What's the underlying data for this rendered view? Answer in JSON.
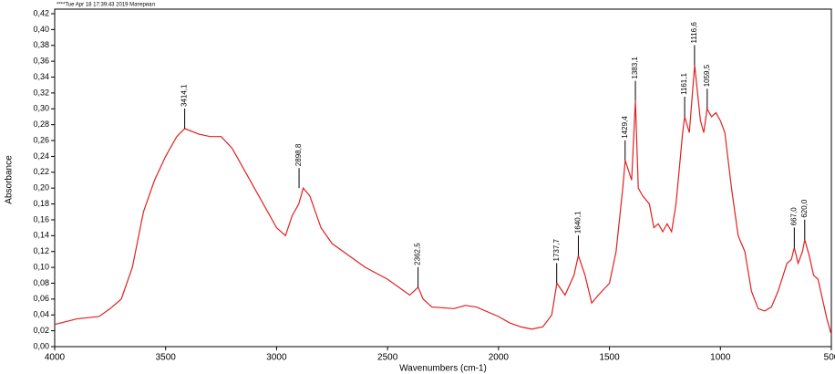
{
  "chart_data": {
    "type": "line",
    "header": "****Tue Apr 18 17:39:43 2019 Материал",
    "xlabel": "Wavenumbers (cm-1)",
    "ylabel": "Absorbance",
    "xlim": [
      4000,
      500
    ],
    "ylim": [
      0,
      0.42
    ],
    "xticks": [
      4000,
      3500,
      3000,
      2500,
      2000,
      1500,
      1000,
      500
    ],
    "yticks": [
      {
        "value": 0,
        "label": "0,00"
      },
      {
        "value": 0.02,
        "label": "0,02"
      },
      {
        "value": 0.04,
        "label": "0,04"
      },
      {
        "value": 0.06,
        "label": "0,06"
      },
      {
        "value": 0.08,
        "label": "0,08"
      },
      {
        "value": 0.1,
        "label": "0,10"
      },
      {
        "value": 0.12,
        "label": "0,12"
      },
      {
        "value": 0.14,
        "label": "0,14"
      },
      {
        "value": 0.16,
        "label": "0,16"
      },
      {
        "value": 0.18,
        "label": "0,18"
      },
      {
        "value": 0.2,
        "label": "0,20"
      },
      {
        "value": 0.22,
        "label": "0,22"
      },
      {
        "value": 0.24,
        "label": "0,24"
      },
      {
        "value": 0.26,
        "label": "0,26"
      },
      {
        "value": 0.28,
        "label": "0,28"
      },
      {
        "value": 0.3,
        "label": "0,30"
      },
      {
        "value": 0.32,
        "label": "0,32"
      },
      {
        "value": 0.34,
        "label": "0,34"
      },
      {
        "value": 0.36,
        "label": "0,36"
      },
      {
        "value": 0.38,
        "label": "0,38"
      },
      {
        "value": 0.4,
        "label": "0,40"
      },
      {
        "value": 0.42,
        "label": "0,42"
      }
    ],
    "x": [
      4000,
      3900,
      3800,
      3750,
      3700,
      3650,
      3600,
      3550,
      3500,
      3450,
      3414,
      3350,
      3300,
      3250,
      3200,
      3100,
      3000,
      2960,
      2930,
      2900,
      2880,
      2850,
      2800,
      2750,
      2700,
      2600,
      2500,
      2400,
      2362,
      2340,
      2300,
      2200,
      2150,
      2100,
      2000,
      1950,
      1900,
      1850,
      1800,
      1760,
      1737,
      1700,
      1660,
      1640,
      1610,
      1580,
      1550,
      1500,
      1470,
      1440,
      1429,
      1400,
      1383,
      1370,
      1350,
      1320,
      1300,
      1280,
      1260,
      1240,
      1220,
      1200,
      1170,
      1161,
      1140,
      1116,
      1090,
      1075,
      1060,
      1040,
      1020,
      1000,
      980,
      950,
      920,
      890,
      860,
      830,
      800,
      770,
      740,
      700,
      680,
      667,
      650,
      630,
      620,
      600,
      580,
      560,
      540,
      520,
      500
    ],
    "series": [
      {
        "color": "#e02020",
        "values": [
          0.028,
          0.035,
          0.038,
          0.048,
          0.06,
          0.1,
          0.17,
          0.21,
          0.24,
          0.265,
          0.275,
          0.268,
          0.265,
          0.265,
          0.25,
          0.2,
          0.15,
          0.14,
          0.165,
          0.18,
          0.2,
          0.19,
          0.15,
          0.13,
          0.12,
          0.1,
          0.085,
          0.065,
          0.075,
          0.06,
          0.05,
          0.048,
          0.052,
          0.05,
          0.038,
          0.03,
          0.025,
          0.022,
          0.025,
          0.04,
          0.08,
          0.065,
          0.09,
          0.115,
          0.09,
          0.055,
          0.065,
          0.08,
          0.12,
          0.2,
          0.235,
          0.21,
          0.31,
          0.2,
          0.19,
          0.18,
          0.15,
          0.155,
          0.145,
          0.155,
          0.145,
          0.18,
          0.27,
          0.29,
          0.27,
          0.355,
          0.285,
          0.27,
          0.3,
          0.29,
          0.295,
          0.285,
          0.27,
          0.2,
          0.14,
          0.12,
          0.07,
          0.048,
          0.045,
          0.05,
          0.07,
          0.105,
          0.11,
          0.125,
          0.105,
          0.12,
          0.135,
          0.115,
          0.09,
          0.085,
          0.06,
          0.035,
          0.015
        ]
      }
    ],
    "annotations": [
      {
        "x": 3414.1,
        "y": 0.275,
        "label": "3414,1"
      },
      {
        "x": 2898.8,
        "y": 0.2,
        "label": "2898,8"
      },
      {
        "x": 2362.5,
        "y": 0.075,
        "label": "2362,5"
      },
      {
        "x": 1737.7,
        "y": 0.08,
        "label": "1737,7"
      },
      {
        "x": 1640.1,
        "y": 0.115,
        "label": "1640,1"
      },
      {
        "x": 1429.4,
        "y": 0.235,
        "label": "1429,4"
      },
      {
        "x": 1383.1,
        "y": 0.31,
        "label": "1383,1"
      },
      {
        "x": 1161.1,
        "y": 0.29,
        "label": "1161,1"
      },
      {
        "x": 1116.6,
        "y": 0.355,
        "label": "1116,6"
      },
      {
        "x": 1059.5,
        "y": 0.3,
        "label": "1059,5"
      },
      {
        "x": 667.0,
        "y": 0.125,
        "label": "667,0"
      },
      {
        "x": 620.0,
        "y": 0.135,
        "label": "620,0"
      }
    ]
  }
}
